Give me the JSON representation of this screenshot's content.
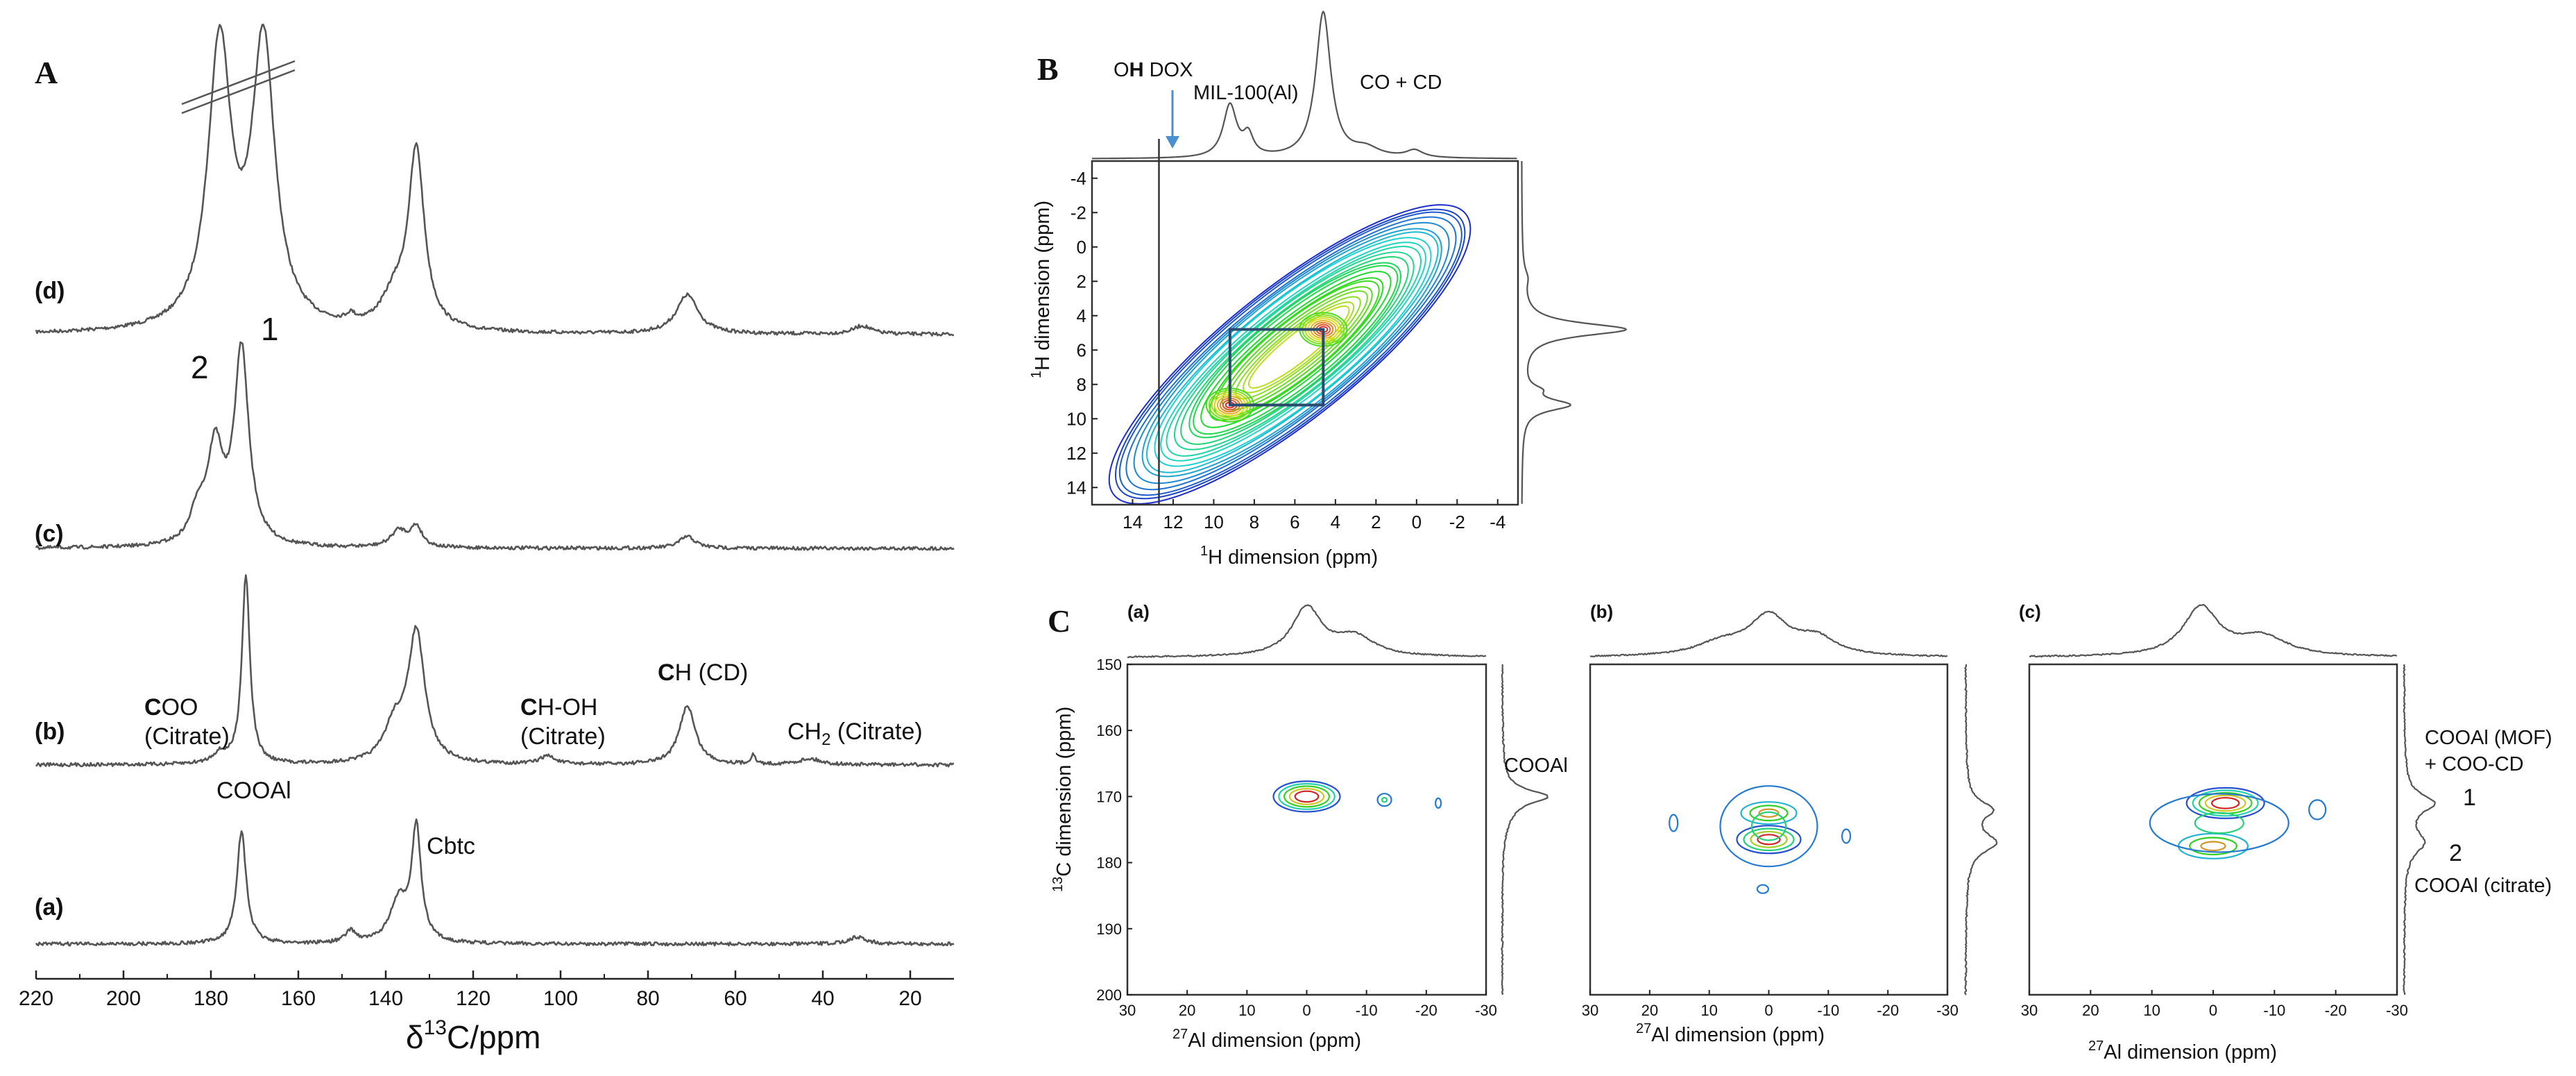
{
  "panels": {
    "a": {
      "letter": "A",
      "axis_label_main": "δ",
      "axis_label_sup": "13",
      "axis_label_rest": "C/ppm",
      "spectra": [
        {
          "label": "(d)"
        },
        {
          "label": "(c)",
          "peak_label_1": "1",
          "peak_label_2": "2"
        },
        {
          "label": "(b)"
        },
        {
          "label": "(a)"
        }
      ],
      "annotations_b": [
        {
          "bold": "C",
          "rest": "OO",
          "line2": "(Citrate)"
        },
        {
          "bold": "C",
          "rest": "H-OH",
          "line2": "(Citrate)"
        },
        {
          "bold": "C",
          "rest": "H (CD)"
        },
        {
          "rest": "CH",
          "sub": "2",
          "tail": " (Citrate)"
        }
      ],
      "annotations_a": [
        {
          "text": "COOAl"
        },
        {
          "text": "Cbtc"
        }
      ]
    },
    "b": {
      "letter": "B",
      "top_labels": [
        {
          "pre": "O",
          "bold": "H",
          "post": " DOX"
        },
        {
          "text": "MIL-100(Al)"
        },
        {
          "text": "CO + CD"
        }
      ],
      "xlabel_sup": "1",
      "xlabel": "H dimension (ppm)",
      "ylabel_sup": "1",
      "ylabel": "H dimension (ppm)"
    },
    "c": {
      "letter": "C",
      "sub_labels": [
        "(a)",
        "(b)",
        "(c)"
      ],
      "ylabel_sup": "13",
      "ylabel": "C dimension (ppm)",
      "xlabel_sup": "27",
      "xlabel": "Al dimension (ppm)",
      "annot_a": "COOAl",
      "annot_c": [
        {
          "text": "COOAl (MOF)"
        },
        {
          "text": "+ COO-CD"
        },
        {
          "text": "1"
        },
        {
          "text": "2"
        },
        {
          "text": "COOAl (citrate)"
        }
      ]
    }
  },
  "chart_data": [
    {
      "type": "line",
      "title": "A",
      "xlabel": "δ13C/ppm",
      "x_reversed": true,
      "xlim": [
        220,
        10
      ],
      "xticks": [
        "220",
        "200",
        "180",
        "160",
        "140",
        "120",
        "100",
        "80",
        "60",
        "40",
        "20"
      ],
      "series": [
        {
          "name": "(d)",
          "peaks": [
            {
              "x": 178,
              "h": 2.4,
              "w": 3.2
            },
            {
              "x": 168,
              "h": 2.4,
              "w": 3.2
            },
            {
              "x": 133,
              "h": 1.5,
              "w": 2.2
            },
            {
              "x": 138,
              "h": 0.25,
              "w": 3.5
            },
            {
              "x": 71,
              "h": 0.33,
              "w": 3
            },
            {
              "x": 148,
              "h": 0.06,
              "w": 1.2
            },
            {
              "x": 31,
              "h": 0.07,
              "w": 2.5
            }
          ]
        },
        {
          "name": "(c)",
          "peaks": [
            {
              "x": 179,
              "h": 0.8,
              "w": 2.2
            },
            {
              "x": 173,
              "h": 1.65,
              "w": 2
            },
            {
              "x": 183,
              "h": 0.25,
              "w": 2
            },
            {
              "x": 137,
              "h": 0.14,
              "w": 2.2
            },
            {
              "x": 133,
              "h": 0.17,
              "w": 1.6
            },
            {
              "x": 71,
              "h": 0.1,
              "w": 2.2
            }
          ]
        },
        {
          "name": "(b)",
          "peaks": [
            {
              "x": 172,
              "h": 1.6,
              "w": 1.1
            },
            {
              "x": 178,
              "h": 0.08,
              "w": 2
            },
            {
              "x": 133,
              "h": 1.1,
              "w": 2.3
            },
            {
              "x": 138,
              "h": 0.3,
              "w": 2.8
            },
            {
              "x": 103,
              "h": 0.07,
              "w": 2
            },
            {
              "x": 71,
              "h": 0.5,
              "w": 2.2
            },
            {
              "x": 56,
              "h": 0.08,
              "w": 0.6
            },
            {
              "x": 43,
              "h": 0.05,
              "w": 3
            }
          ]
        },
        {
          "name": "(a)",
          "peaks": [
            {
              "x": 173,
              "h": 0.95,
              "w": 1.3
            },
            {
              "x": 137,
              "h": 0.35,
              "w": 2.5
            },
            {
              "x": 133,
              "h": 0.95,
              "w": 1.3
            },
            {
              "x": 148,
              "h": 0.1,
              "w": 1.5
            },
            {
              "x": 32,
              "h": 0.06,
              "w": 2.5
            }
          ]
        }
      ]
    },
    {
      "type": "contour",
      "title": "B",
      "xlabel": "1H dimension (ppm)",
      "ylabel": "1H dimension (ppm)",
      "x_reversed": true,
      "xlim": [
        16,
        -5
      ],
      "ylim": [
        -5,
        15
      ],
      "xticks": [
        "14",
        "12",
        "10",
        "8",
        "6",
        "4",
        "2",
        "0",
        "-2",
        "-4"
      ],
      "yticks": [
        "-4",
        "-2",
        "0",
        "2",
        "4",
        "6",
        "8",
        "10",
        "12",
        "14"
      ],
      "diagonal": {
        "from": [
          15,
          14.5
        ],
        "to": [
          -2.5,
          -2
        ]
      },
      "hotspots": [
        {
          "x": 4.6,
          "y": 4.8
        },
        {
          "x": 9.2,
          "y": 9.2
        }
      ],
      "highlight_box": {
        "x": [
          9.2,
          4.6
        ],
        "y": [
          4.8,
          9.2
        ]
      },
      "vertical_marker": 12.7
    },
    {
      "type": "contour",
      "title": "C",
      "xlabel": "27Al dimension (ppm)",
      "ylabel": "13C dimension (ppm)",
      "x_reversed": true,
      "xlim": [
        30,
        -30
      ],
      "ylim": [
        150,
        200
      ],
      "xticks": [
        "30",
        "20",
        "10",
        "0",
        "-10",
        "-20",
        "-30"
      ],
      "yticks": [
        "150",
        "160",
        "170",
        "180",
        "190",
        "200"
      ],
      "subplots": [
        {
          "label": "(a)",
          "centers": [
            {
              "x": 0,
              "y": 170
            }
          ]
        },
        {
          "label": "(b)",
          "centers": [
            {
              "x": 0,
              "y": 172.5
            },
            {
              "x": 0,
              "y": 176.5
            }
          ]
        },
        {
          "label": "(c)",
          "centers": [
            {
              "x": -2,
              "y": 171
            },
            {
              "x": 0,
              "y": 177.5
            }
          ]
        }
      ]
    }
  ]
}
